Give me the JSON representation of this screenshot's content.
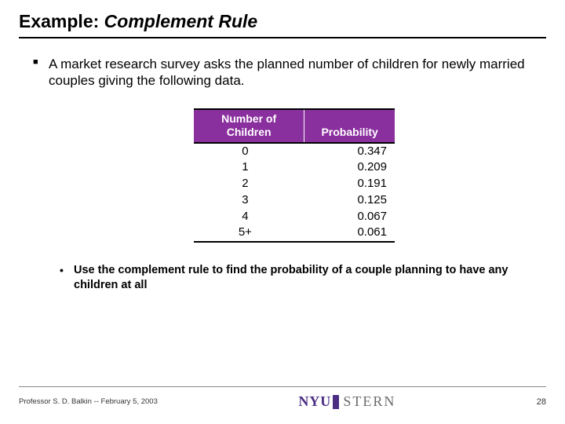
{
  "title_prefix": "Example: ",
  "title_italic": "Complement Rule",
  "bullet1": "A market research survey asks the planned number of children for newly married couples giving the following data.",
  "bullet2": "Use the complement rule to find the probability of a couple planning to have any children at all",
  "table": {
    "header_bg": "#8a2f9e",
    "header_fg": "#ffffff",
    "col1_line1": "Number of",
    "col1_line2": "Children",
    "col2": "Probability",
    "rows": [
      {
        "n": "0",
        "p": "0.347"
      },
      {
        "n": "1",
        "p": "0.209"
      },
      {
        "n": "2",
        "p": "0.191"
      },
      {
        "n": "3",
        "p": "0.125"
      },
      {
        "n": "4",
        "p": "0.067"
      },
      {
        "n": "5+",
        "p": "0.061"
      }
    ]
  },
  "footer": {
    "left": "Professor S. D. Balkin -- February 5, 2003",
    "page": "28",
    "logo_nyu": "NYU",
    "logo_stern": "STERN"
  }
}
